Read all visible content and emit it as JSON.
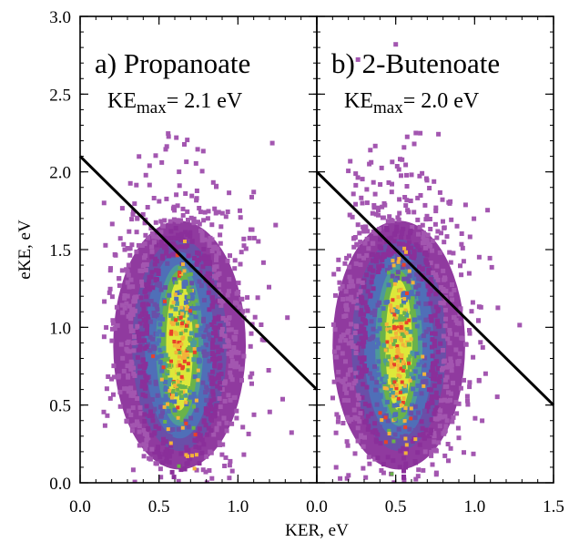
{
  "chart_data": [
    {
      "type": "heatmap",
      "panel_title": "a) Propanoate",
      "ke_prefix": "KE",
      "ke_subscript": "max",
      "ke_value": "= 2.1 eV",
      "kemax_eV": 2.1,
      "xlabel": "",
      "ylabel": "eKE, eV",
      "xlim": [
        0.0,
        1.5
      ],
      "ylim": [
        0.0,
        3.0
      ],
      "x_ticks": [
        "0.0",
        "0.5",
        "1.0",
        ""
      ],
      "y_ticks": [
        "0.0",
        "0.5",
        "1.0",
        "1.5",
        "2.0",
        "2.5",
        "3.0"
      ],
      "x_tick_values": [
        0.0,
        0.5,
        1.0,
        1.5
      ],
      "y_tick_values": [
        0.0,
        0.5,
        1.0,
        1.5,
        2.0,
        2.5,
        3.0
      ],
      "line": {
        "x": [
          0.0,
          1.5
        ],
        "y": [
          2.1,
          0.6
        ]
      },
      "distribution": {
        "center_ker": 0.63,
        "center_eke": 0.85,
        "ker_extent": [
          0.15,
          1.45
        ],
        "eke_extent": [
          0.0,
          2.25
        ],
        "max_eke_point": 2.22
      }
    },
    {
      "type": "heatmap",
      "panel_title": "b) 2-Butenoate",
      "ke_prefix": "KE",
      "ke_subscript": "max",
      "ke_value": "= 2.0 eV",
      "kemax_eV": 2.0,
      "xlabel": "",
      "ylabel": "",
      "xlim": [
        0.0,
        1.5
      ],
      "ylim": [
        0.0,
        3.0
      ],
      "x_ticks": [
        "0.0",
        "0.5",
        "1.0",
        "1.5"
      ],
      "x_tick_values": [
        0.0,
        0.5,
        1.0,
        1.5
      ],
      "y_tick_values": [
        0.0,
        0.5,
        1.0,
        1.5,
        2.0,
        2.5,
        3.0
      ],
      "line": {
        "x": [
          0.0,
          1.5
        ],
        "y": [
          2.0,
          0.5
        ]
      },
      "distribution": {
        "center_ker": 0.52,
        "center_eke": 0.85,
        "ker_extent": [
          0.1,
          1.45
        ],
        "eke_extent": [
          0.0,
          2.82
        ],
        "max_eke_point": 2.82
      }
    }
  ],
  "shared_xlabel": "KER, eV",
  "colors": {
    "outer": "#8a2f9a",
    "outer_dim": "#a356b0",
    "mid": "#6a4fa8",
    "blue": "#4f6fb8",
    "teal": "#4d9a9a",
    "green": "#6ab34a",
    "yellow": "#dde83a",
    "orange": "#f3b23a",
    "red": "#e8412a",
    "line": "#000000"
  }
}
